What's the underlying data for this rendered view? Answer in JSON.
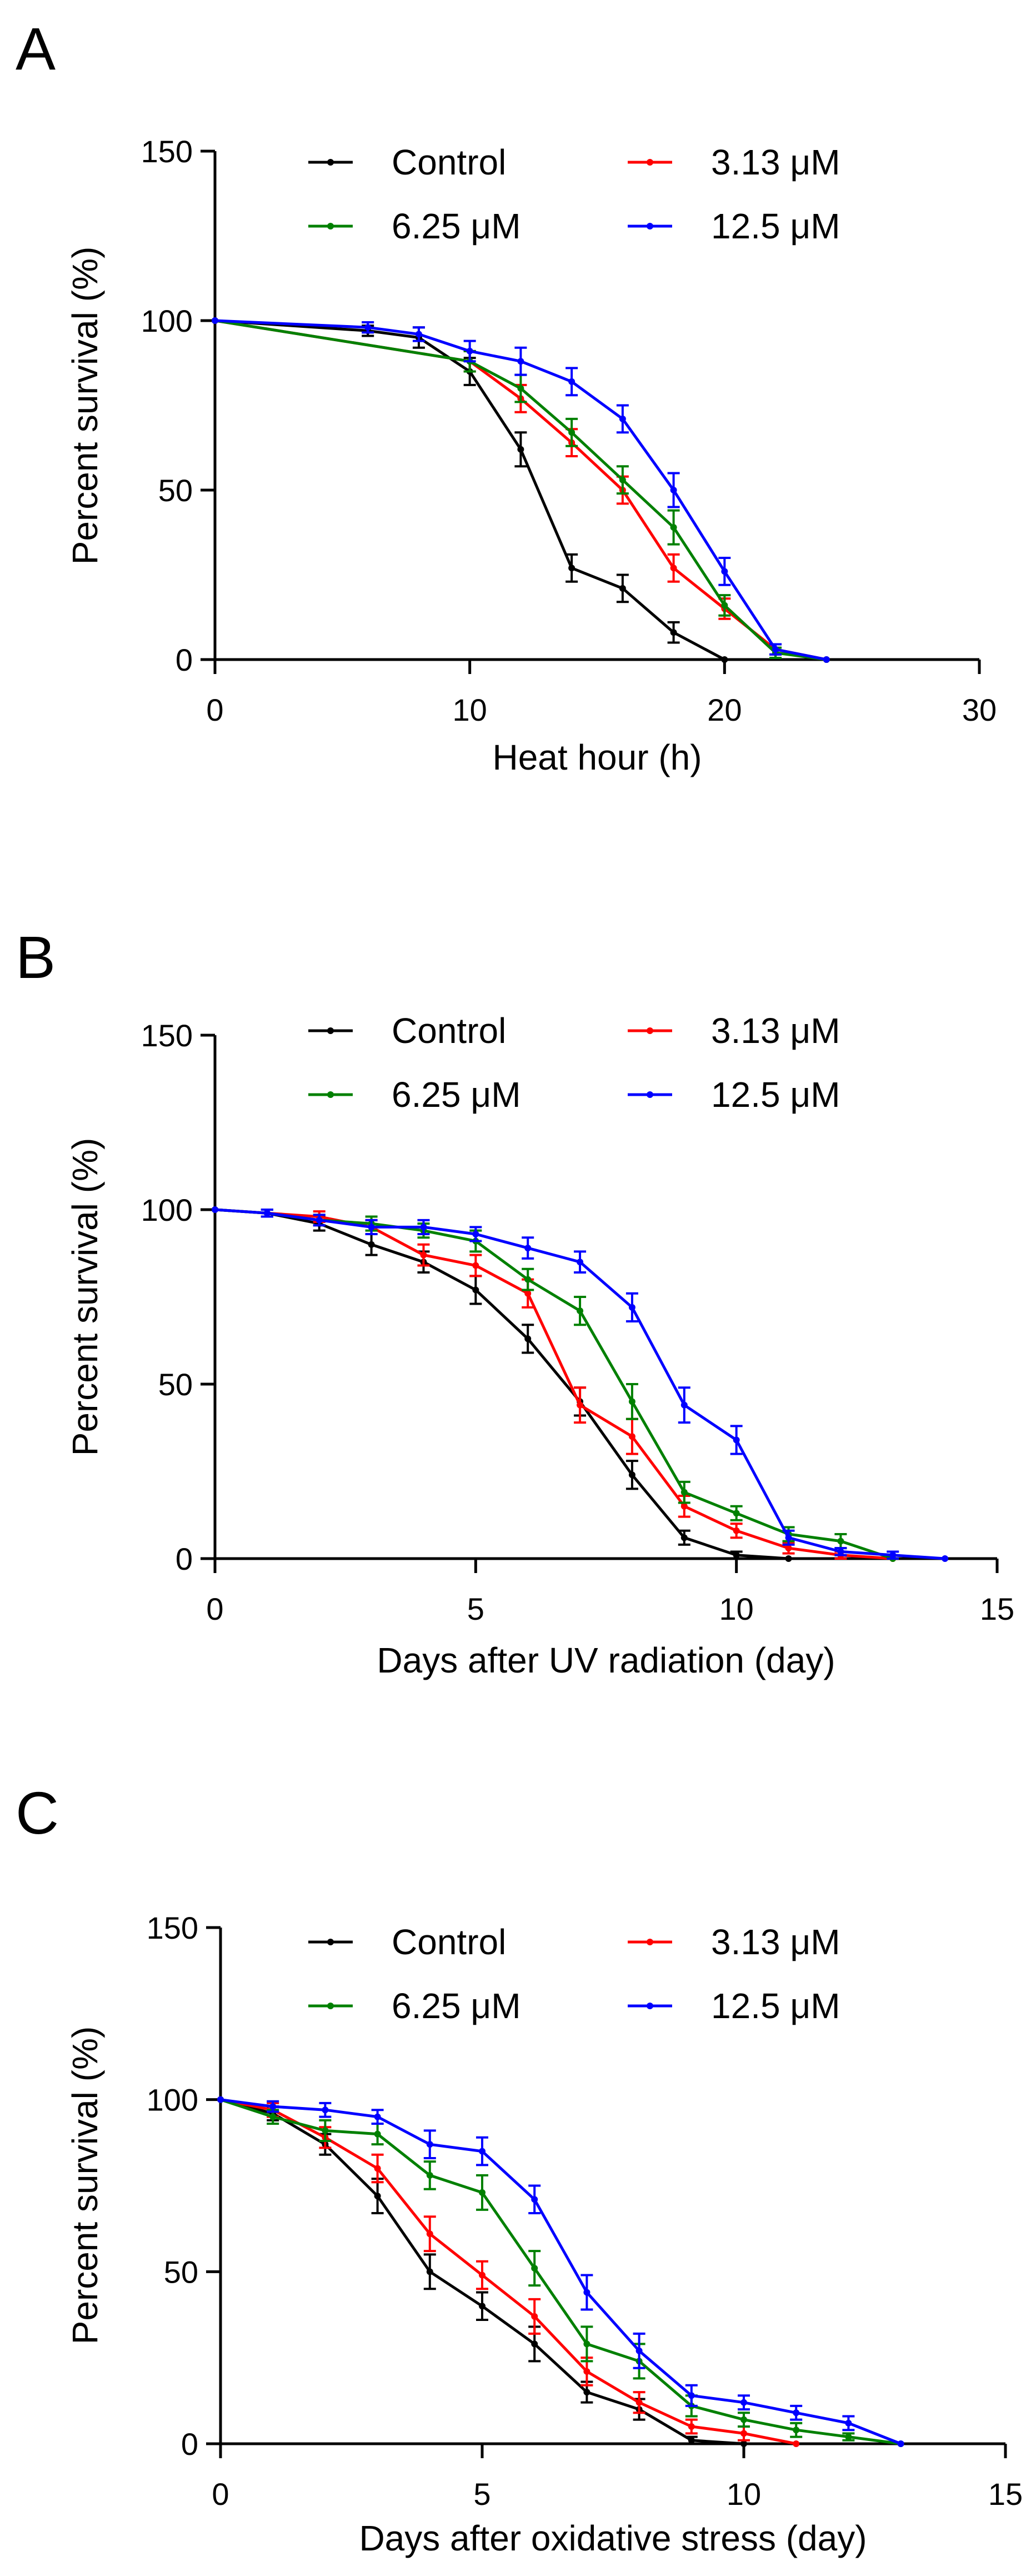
{
  "figure": {
    "legend_labels": [
      "Control",
      "3.13 μM",
      "6.25 μM",
      "12.5 μM"
    ]
  },
  "chart_data": [
    {
      "type": "line",
      "panel_label": "A",
      "title": "",
      "xlabel": "Heat hour (h)",
      "ylabel": "Percent survival (%)",
      "xlim": [
        0,
        30
      ],
      "ylim": [
        0,
        150
      ],
      "xticks": [
        0,
        10,
        20,
        30
      ],
      "yticks": [
        0,
        50,
        100,
        150
      ],
      "legend": "top",
      "series": [
        {
          "name": "Control",
          "color": "#000000",
          "x": [
            0,
            6,
            8,
            10,
            12,
            14,
            16,
            18,
            20
          ],
          "y": [
            100,
            97,
            95,
            85,
            62,
            27,
            21,
            8,
            0
          ],
          "err": [
            0,
            1.5,
            3,
            4,
            5,
            4,
            4,
            3,
            0
          ]
        },
        {
          "name": "3.13 μM",
          "color": "#ff0000",
          "x": [
            0,
            10,
            12,
            14,
            16,
            18,
            20,
            22,
            24
          ],
          "y": [
            100,
            88,
            77,
            64,
            50,
            27,
            15,
            3,
            0
          ],
          "err": [
            0,
            3,
            4,
            4,
            4,
            4,
            3,
            1.5,
            0
          ]
        },
        {
          "name": "6.25 μM",
          "color": "#008000",
          "x": [
            0,
            10,
            12,
            14,
            16,
            18,
            20,
            22,
            24
          ],
          "y": [
            100,
            88,
            80,
            67,
            53,
            39,
            16,
            2,
            0
          ],
          "err": [
            0,
            3,
            4,
            4,
            4,
            5,
            3,
            1.5,
            0
          ]
        },
        {
          "name": "12.5 μM",
          "color": "#0000ff",
          "x": [
            0,
            6,
            8,
            10,
            12,
            14,
            16,
            18,
            20,
            22,
            24
          ],
          "y": [
            100,
            98,
            96,
            91,
            88,
            82,
            71,
            50,
            26,
            3,
            0
          ],
          "err": [
            0,
            1.5,
            2,
            3,
            4,
            4,
            4,
            5,
            4,
            1.5,
            0
          ]
        }
      ]
    },
    {
      "type": "line",
      "panel_label": "B",
      "title": "",
      "xlabel": "Days after UV radiation (day)",
      "ylabel": "Percent survival (%)",
      "xlim": [
        0,
        15
      ],
      "ylim": [
        0,
        150
      ],
      "xticks": [
        0,
        5,
        10,
        15
      ],
      "yticks": [
        0,
        50,
        100,
        150
      ],
      "legend": "top",
      "series": [
        {
          "name": "Control",
          "color": "#000000",
          "x": [
            0,
            1,
            2,
            3,
            4,
            5,
            6,
            7,
            8,
            9,
            10,
            11
          ],
          "y": [
            100,
            99,
            96,
            90,
            85,
            77,
            63,
            45,
            24,
            6,
            1,
            0
          ],
          "err": [
            0,
            1,
            2,
            3,
            3,
            4,
            4,
            4,
            4,
            2,
            1,
            0
          ]
        },
        {
          "name": "3.13 μM",
          "color": "#ff0000",
          "x": [
            0,
            1,
            2,
            3,
            4,
            5,
            6,
            7,
            8,
            9,
            10,
            11,
            12,
            13
          ],
          "y": [
            100,
            99,
            98,
            95,
            87,
            84,
            76,
            44,
            35,
            15,
            8,
            3,
            1,
            0
          ],
          "err": [
            0,
            1,
            1.5,
            2,
            3,
            3,
            4,
            5,
            5,
            3,
            2,
            1.5,
            1,
            0
          ]
        },
        {
          "name": "6.25 μM",
          "color": "#008000",
          "x": [
            0,
            1,
            2,
            3,
            4,
            5,
            6,
            7,
            8,
            9,
            10,
            11,
            12,
            13
          ],
          "y": [
            100,
            99,
            97,
            96,
            94,
            91,
            80,
            71,
            45,
            19,
            13,
            7,
            5,
            0
          ],
          "err": [
            0,
            1,
            1.5,
            2,
            2,
            3,
            3,
            4,
            5,
            3,
            2,
            2,
            2,
            0
          ]
        },
        {
          "name": "12.5 μM",
          "color": "#0000ff",
          "x": [
            0,
            1,
            2,
            3,
            4,
            5,
            6,
            7,
            8,
            9,
            10,
            11,
            12,
            13,
            14
          ],
          "y": [
            100,
            99,
            97,
            95,
            95,
            93,
            89,
            85,
            72,
            44,
            34,
            6,
            2,
            1,
            0
          ],
          "err": [
            0,
            1,
            1.5,
            2,
            2,
            2,
            3,
            3,
            4,
            5,
            4,
            2,
            1,
            1,
            0
          ]
        }
      ]
    },
    {
      "type": "line",
      "panel_label": "C",
      "title": "",
      "xlabel": "Days after oxidative stress (day)",
      "ylabel": "Percent survival (%)",
      "xlim": [
        0,
        15
      ],
      "ylim": [
        0,
        150
      ],
      "xticks": [
        0,
        5,
        10,
        15
      ],
      "yticks": [
        0,
        50,
        100,
        150
      ],
      "legend": "top",
      "series": [
        {
          "name": "Control",
          "color": "#000000",
          "x": [
            0,
            1,
            2,
            3,
            4,
            5,
            6,
            7,
            8,
            9,
            10
          ],
          "y": [
            100,
            96,
            87,
            72,
            50,
            40,
            29,
            15,
            10,
            1,
            0
          ],
          "err": [
            0,
            2,
            3,
            5,
            5,
            4,
            5,
            3,
            3,
            1,
            0
          ]
        },
        {
          "name": "3.13 μM",
          "color": "#ff0000",
          "x": [
            0,
            1,
            2,
            3,
            4,
            5,
            6,
            7,
            8,
            9,
            10,
            11
          ],
          "y": [
            100,
            97,
            89,
            80,
            61,
            49,
            37,
            21,
            12,
            5,
            3,
            0
          ],
          "err": [
            0,
            2,
            3,
            4,
            5,
            4,
            5,
            4,
            3,
            2,
            2,
            0
          ]
        },
        {
          "name": "6.25 μM",
          "color": "#008000",
          "x": [
            0,
            1,
            2,
            3,
            4,
            5,
            6,
            7,
            8,
            9,
            10,
            11,
            12,
            13
          ],
          "y": [
            100,
            95,
            91,
            90,
            78,
            73,
            51,
            29,
            24,
            11,
            7,
            4,
            2,
            0
          ],
          "err": [
            0,
            2,
            3,
            3,
            4,
            5,
            5,
            5,
            5,
            3,
            2,
            2,
            1,
            0
          ]
        },
        {
          "name": "12.5 μM",
          "color": "#0000ff",
          "x": [
            0,
            1,
            2,
            3,
            4,
            5,
            6,
            7,
            8,
            9,
            10,
            11,
            12,
            13
          ],
          "y": [
            100,
            98,
            97,
            95,
            87,
            85,
            71,
            44,
            27,
            14,
            12,
            9,
            6,
            0
          ],
          "err": [
            0,
            1.5,
            2,
            2,
            4,
            4,
            4,
            5,
            5,
            3,
            2,
            2,
            2,
            0
          ]
        }
      ]
    }
  ]
}
